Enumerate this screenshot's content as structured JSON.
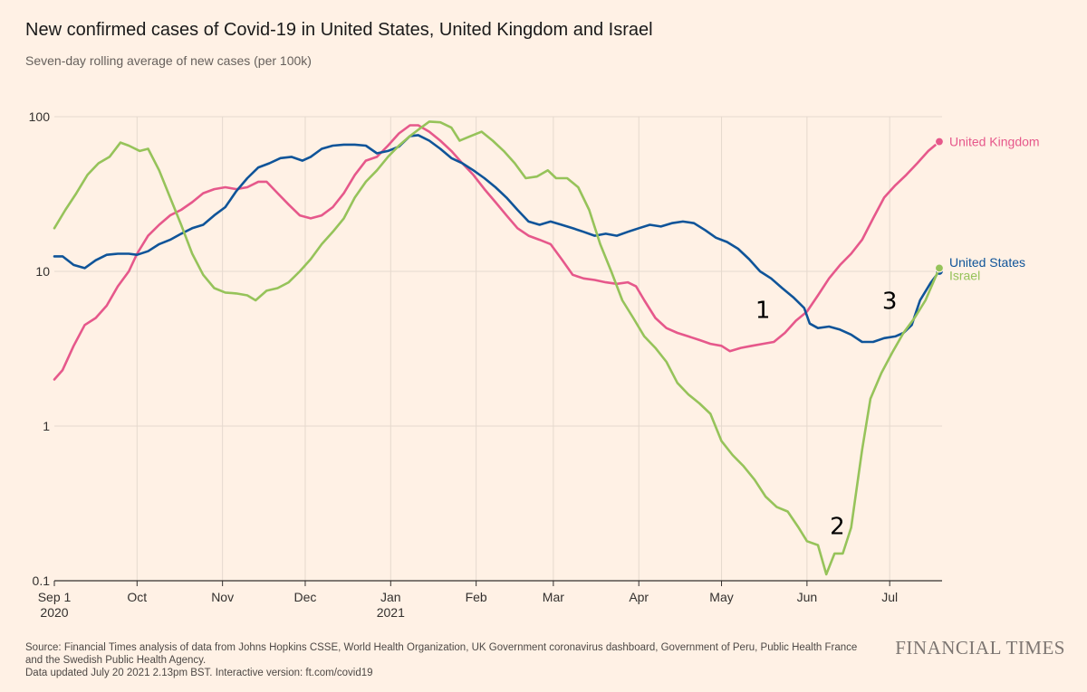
{
  "header": {
    "title": "New confirmed cases of Covid-19 in United States, United Kingdom and Israel",
    "subtitle": "Seven-day rolling average of new cases (per 100k)"
  },
  "footer": {
    "source_line1": "Source: Financial Times analysis of data from Johns Hopkins CSSE, World Health Organization, UK Government coronavirus dashboard, Government of Peru, Public Health France",
    "source_line2": "and the Swedish Public Health Agency.",
    "updated": "Data updated July 20 2021 2.13pm BST. Interactive version: ft.com/covid19",
    "logo": "FINANCIAL TIMES"
  },
  "colors": {
    "background": "#fff1e5",
    "grid": "#e5d9ce",
    "axis": "#33302e",
    "united_kingdom": "#e6588b",
    "united_states": "#0f5499",
    "israel": "#96c35a"
  },
  "chart_data": {
    "type": "line",
    "y_scale": "log",
    "ylim": [
      0.1,
      100
    ],
    "y_ticks": [
      {
        "value": 100,
        "label": "100"
      },
      {
        "value": 10,
        "label": "10"
      },
      {
        "value": 1,
        "label": "1"
      },
      {
        "value": 0.1,
        "label": "0.1"
      }
    ],
    "x_range": [
      "2020-09-01",
      "2021-07-20"
    ],
    "x_ticks": [
      {
        "date": "2020-09-01",
        "label": "Sep 1",
        "sublabel": "2020"
      },
      {
        "date": "2020-10-01",
        "label": "Oct",
        "sublabel": ""
      },
      {
        "date": "2020-11-01",
        "label": "Nov",
        "sublabel": ""
      },
      {
        "date": "2020-12-01",
        "label": "Dec",
        "sublabel": ""
      },
      {
        "date": "2021-01-01",
        "label": "Jan",
        "sublabel": "2021"
      },
      {
        "date": "2021-02-01",
        "label": "Feb",
        "sublabel": ""
      },
      {
        "date": "2021-03-01",
        "label": "Mar",
        "sublabel": ""
      },
      {
        "date": "2021-04-01",
        "label": "Apr",
        "sublabel": ""
      },
      {
        "date": "2021-05-01",
        "label": "May",
        "sublabel": ""
      },
      {
        "date": "2021-06-01",
        "label": "Jun",
        "sublabel": ""
      },
      {
        "date": "2021-07-01",
        "label": "Jul",
        "sublabel": ""
      }
    ],
    "series": [
      {
        "name": "United Kingdom",
        "color": "#e6588b",
        "points": [
          [
            "2020-09-01",
            2.0
          ],
          [
            "2020-09-04",
            2.3
          ],
          [
            "2020-09-08",
            3.3
          ],
          [
            "2020-09-12",
            4.5
          ],
          [
            "2020-09-16",
            5.0
          ],
          [
            "2020-09-20",
            6.0
          ],
          [
            "2020-09-24",
            8.0
          ],
          [
            "2020-09-28",
            10.0
          ],
          [
            "2020-10-01",
            13.0
          ],
          [
            "2020-10-05",
            17.0
          ],
          [
            "2020-10-09",
            20.0
          ],
          [
            "2020-10-13",
            23.0
          ],
          [
            "2020-10-17",
            25.0
          ],
          [
            "2020-10-21",
            28.0
          ],
          [
            "2020-10-25",
            32.0
          ],
          [
            "2020-10-29",
            34.0
          ],
          [
            "2020-11-02",
            35.0
          ],
          [
            "2020-11-06",
            34.0
          ],
          [
            "2020-11-10",
            35.0
          ],
          [
            "2020-11-14",
            38.0
          ],
          [
            "2020-11-17",
            38.0
          ],
          [
            "2020-11-21",
            32.0
          ],
          [
            "2020-11-25",
            27.0
          ],
          [
            "2020-11-29",
            23.0
          ],
          [
            "2020-12-03",
            22.0
          ],
          [
            "2020-12-07",
            23.0
          ],
          [
            "2020-12-11",
            26.0
          ],
          [
            "2020-12-15",
            32.0
          ],
          [
            "2020-12-19",
            42.0
          ],
          [
            "2020-12-23",
            52.0
          ],
          [
            "2020-12-27",
            55.0
          ],
          [
            "2020-12-31",
            65.0
          ],
          [
            "2021-01-04",
            78.0
          ],
          [
            "2021-01-08",
            88.0
          ],
          [
            "2021-01-11",
            88.0
          ],
          [
            "2021-01-15",
            80.0
          ],
          [
            "2021-01-19",
            70.0
          ],
          [
            "2021-01-23",
            60.0
          ],
          [
            "2021-01-27",
            50.0
          ],
          [
            "2021-01-31",
            42.0
          ],
          [
            "2021-02-04",
            34.0
          ],
          [
            "2021-02-08",
            28.0
          ],
          [
            "2021-02-12",
            23.0
          ],
          [
            "2021-02-16",
            19.0
          ],
          [
            "2021-02-20",
            17.0
          ],
          [
            "2021-02-24",
            16.0
          ],
          [
            "2021-02-28",
            15.0
          ],
          [
            "2021-03-04",
            12.0
          ],
          [
            "2021-03-08",
            9.5
          ],
          [
            "2021-03-12",
            9.0
          ],
          [
            "2021-03-16",
            8.8
          ],
          [
            "2021-03-20",
            8.5
          ],
          [
            "2021-03-24",
            8.3
          ],
          [
            "2021-03-28",
            8.5
          ],
          [
            "2021-03-31",
            8.0
          ],
          [
            "2021-04-03",
            6.5
          ],
          [
            "2021-04-07",
            5.0
          ],
          [
            "2021-04-11",
            4.3
          ],
          [
            "2021-04-15",
            4.0
          ],
          [
            "2021-04-19",
            3.8
          ],
          [
            "2021-04-23",
            3.6
          ],
          [
            "2021-04-27",
            3.4
          ],
          [
            "2021-05-01",
            3.3
          ],
          [
            "2021-05-04",
            3.05
          ],
          [
            "2021-05-08",
            3.2
          ],
          [
            "2021-05-12",
            3.3
          ],
          [
            "2021-05-16",
            3.4
          ],
          [
            "2021-05-20",
            3.5
          ],
          [
            "2021-05-24",
            4.0
          ],
          [
            "2021-05-28",
            4.8
          ],
          [
            "2021-06-01",
            5.5
          ],
          [
            "2021-06-05",
            7.0
          ],
          [
            "2021-06-09",
            9.0
          ],
          [
            "2021-06-13",
            11.0
          ],
          [
            "2021-06-17",
            13.0
          ],
          [
            "2021-06-21",
            16.0
          ],
          [
            "2021-06-25",
            22.0
          ],
          [
            "2021-06-29",
            30.0
          ],
          [
            "2021-07-03",
            36.0
          ],
          [
            "2021-07-07",
            42.0
          ],
          [
            "2021-07-11",
            50.0
          ],
          [
            "2021-07-15",
            60.0
          ],
          [
            "2021-07-19",
            69.0
          ]
        ]
      },
      {
        "name": "United States",
        "color": "#0f5499",
        "points": [
          [
            "2020-09-01",
            12.5
          ],
          [
            "2020-09-04",
            12.5
          ],
          [
            "2020-09-08",
            11.0
          ],
          [
            "2020-09-12",
            10.5
          ],
          [
            "2020-09-16",
            11.8
          ],
          [
            "2020-09-20",
            12.8
          ],
          [
            "2020-09-24",
            13.0
          ],
          [
            "2020-09-28",
            13.0
          ],
          [
            "2020-10-01",
            12.8
          ],
          [
            "2020-10-05",
            13.5
          ],
          [
            "2020-10-09",
            15.0
          ],
          [
            "2020-10-13",
            16.0
          ],
          [
            "2020-10-17",
            17.5
          ],
          [
            "2020-10-21",
            19.0
          ],
          [
            "2020-10-25",
            20.0
          ],
          [
            "2020-10-29",
            23.0
          ],
          [
            "2020-11-02",
            26.0
          ],
          [
            "2020-11-06",
            33.0
          ],
          [
            "2020-11-10",
            40.0
          ],
          [
            "2020-11-14",
            47.0
          ],
          [
            "2020-11-18",
            50.0
          ],
          [
            "2020-11-22",
            54.0
          ],
          [
            "2020-11-26",
            55.0
          ],
          [
            "2020-11-30",
            52.0
          ],
          [
            "2020-12-03",
            55.0
          ],
          [
            "2020-12-07",
            62.0
          ],
          [
            "2020-12-11",
            65.0
          ],
          [
            "2020-12-15",
            66.0
          ],
          [
            "2020-12-19",
            66.0
          ],
          [
            "2020-12-23",
            65.0
          ],
          [
            "2020-12-27",
            58.0
          ],
          [
            "2020-12-31",
            60.0
          ],
          [
            "2021-01-04",
            64.0
          ],
          [
            "2021-01-08",
            75.0
          ],
          [
            "2021-01-11",
            76.0
          ],
          [
            "2021-01-15",
            70.0
          ],
          [
            "2021-01-19",
            62.0
          ],
          [
            "2021-01-23",
            54.0
          ],
          [
            "2021-01-27",
            50.0
          ],
          [
            "2021-01-31",
            45.0
          ],
          [
            "2021-02-04",
            40.0
          ],
          [
            "2021-02-08",
            35.0
          ],
          [
            "2021-02-12",
            30.0
          ],
          [
            "2021-02-16",
            25.0
          ],
          [
            "2021-02-20",
            21.0
          ],
          [
            "2021-02-24",
            20.0
          ],
          [
            "2021-02-28",
            21.0
          ],
          [
            "2021-03-04",
            20.0
          ],
          [
            "2021-03-08",
            19.0
          ],
          [
            "2021-03-12",
            18.0
          ],
          [
            "2021-03-16",
            17.0
          ],
          [
            "2021-03-20",
            17.5
          ],
          [
            "2021-03-24",
            17.0
          ],
          [
            "2021-03-28",
            18.0
          ],
          [
            "2021-04-01",
            19.0
          ],
          [
            "2021-04-05",
            20.0
          ],
          [
            "2021-04-09",
            19.5
          ],
          [
            "2021-04-13",
            20.5
          ],
          [
            "2021-04-17",
            21.0
          ],
          [
            "2021-04-21",
            20.5
          ],
          [
            "2021-04-25",
            18.5
          ],
          [
            "2021-04-29",
            16.5
          ],
          [
            "2021-05-03",
            15.5
          ],
          [
            "2021-05-07",
            14.0
          ],
          [
            "2021-05-11",
            12.0
          ],
          [
            "2021-05-15",
            10.0
          ],
          [
            "2021-05-19",
            9.0
          ],
          [
            "2021-05-23",
            7.8
          ],
          [
            "2021-05-27",
            6.8
          ],
          [
            "2021-05-31",
            5.8
          ],
          [
            "2021-06-02",
            4.6
          ],
          [
            "2021-06-05",
            4.3
          ],
          [
            "2021-06-09",
            4.4
          ],
          [
            "2021-06-13",
            4.2
          ],
          [
            "2021-06-17",
            3.9
          ],
          [
            "2021-06-21",
            3.5
          ],
          [
            "2021-06-25",
            3.5
          ],
          [
            "2021-06-29",
            3.7
          ],
          [
            "2021-07-03",
            3.8
          ],
          [
            "2021-07-06",
            4.0
          ],
          [
            "2021-07-09",
            4.5
          ],
          [
            "2021-07-12",
            6.5
          ],
          [
            "2021-07-16",
            8.5
          ],
          [
            "2021-07-19",
            10.0
          ]
        ]
      },
      {
        "name": "Israel",
        "color": "#96c35a",
        "points": [
          [
            "2020-09-01",
            19.0
          ],
          [
            "2020-09-05",
            25.0
          ],
          [
            "2020-09-09",
            32.0
          ],
          [
            "2020-09-13",
            42.0
          ],
          [
            "2020-09-17",
            50.0
          ],
          [
            "2020-09-21",
            55.0
          ],
          [
            "2020-09-25",
            68.0
          ],
          [
            "2020-09-28",
            65.0
          ],
          [
            "2020-10-02",
            60.0
          ],
          [
            "2020-10-05",
            62.0
          ],
          [
            "2020-10-09",
            45.0
          ],
          [
            "2020-10-13",
            30.0
          ],
          [
            "2020-10-17",
            20.0
          ],
          [
            "2020-10-21",
            13.0
          ],
          [
            "2020-10-25",
            9.5
          ],
          [
            "2020-10-29",
            7.8
          ],
          [
            "2020-11-02",
            7.3
          ],
          [
            "2020-11-06",
            7.2
          ],
          [
            "2020-11-10",
            7.0
          ],
          [
            "2020-11-13",
            6.5
          ],
          [
            "2020-11-17",
            7.5
          ],
          [
            "2020-11-21",
            7.8
          ],
          [
            "2020-11-25",
            8.5
          ],
          [
            "2020-11-29",
            10.0
          ],
          [
            "2020-12-03",
            12.0
          ],
          [
            "2020-12-07",
            15.0
          ],
          [
            "2020-12-11",
            18.0
          ],
          [
            "2020-12-15",
            22.0
          ],
          [
            "2020-12-19",
            30.0
          ],
          [
            "2020-12-23",
            38.0
          ],
          [
            "2020-12-27",
            45.0
          ],
          [
            "2020-12-31",
            55.0
          ],
          [
            "2021-01-04",
            65.0
          ],
          [
            "2021-01-08",
            75.0
          ],
          [
            "2021-01-12",
            85.0
          ],
          [
            "2021-01-15",
            93.0
          ],
          [
            "2021-01-19",
            92.0
          ],
          [
            "2021-01-23",
            85.0
          ],
          [
            "2021-01-26",
            70.0
          ],
          [
            "2021-01-30",
            75.0
          ],
          [
            "2021-02-03",
            80.0
          ],
          [
            "2021-02-07",
            70.0
          ],
          [
            "2021-02-11",
            60.0
          ],
          [
            "2021-02-15",
            50.0
          ],
          [
            "2021-02-19",
            40.0
          ],
          [
            "2021-02-23",
            41.0
          ],
          [
            "2021-02-27",
            45.0
          ],
          [
            "2021-03-02",
            40.0
          ],
          [
            "2021-03-06",
            40.0
          ],
          [
            "2021-03-10",
            35.0
          ],
          [
            "2021-03-14",
            25.0
          ],
          [
            "2021-03-18",
            15.0
          ],
          [
            "2021-03-22",
            10.0
          ],
          [
            "2021-03-26",
            6.5
          ],
          [
            "2021-03-30",
            5.0
          ],
          [
            "2021-04-03",
            3.8
          ],
          [
            "2021-04-07",
            3.2
          ],
          [
            "2021-04-11",
            2.6
          ],
          [
            "2021-04-15",
            1.9
          ],
          [
            "2021-04-19",
            1.6
          ],
          [
            "2021-04-23",
            1.4
          ],
          [
            "2021-04-27",
            1.2
          ],
          [
            "2021-05-01",
            0.8
          ],
          [
            "2021-05-05",
            0.65
          ],
          [
            "2021-05-09",
            0.55
          ],
          [
            "2021-05-13",
            0.45
          ],
          [
            "2021-05-17",
            0.35
          ],
          [
            "2021-05-21",
            0.3
          ],
          [
            "2021-05-25",
            0.28
          ],
          [
            "2021-05-29",
            0.22
          ],
          [
            "2021-06-01",
            0.18
          ],
          [
            "2021-06-05",
            0.17
          ],
          [
            "2021-06-08",
            0.11
          ],
          [
            "2021-06-11",
            0.15
          ],
          [
            "2021-06-14",
            0.15
          ],
          [
            "2021-06-17",
            0.22
          ],
          [
            "2021-06-21",
            0.7
          ],
          [
            "2021-06-24",
            1.5
          ],
          [
            "2021-06-28",
            2.2
          ],
          [
            "2021-07-02",
            3.0
          ],
          [
            "2021-07-06",
            4.0
          ],
          [
            "2021-07-10",
            5.0
          ],
          [
            "2021-07-14",
            6.5
          ],
          [
            "2021-07-19",
            10.5
          ]
        ]
      }
    ],
    "annotations": [
      {
        "label": "1",
        "date": "2021-05-16",
        "value": 5.0
      },
      {
        "label": "2",
        "date": "2021-06-12",
        "value": 0.2
      },
      {
        "label": "3",
        "date": "2021-07-01",
        "value": 5.7
      }
    ]
  }
}
